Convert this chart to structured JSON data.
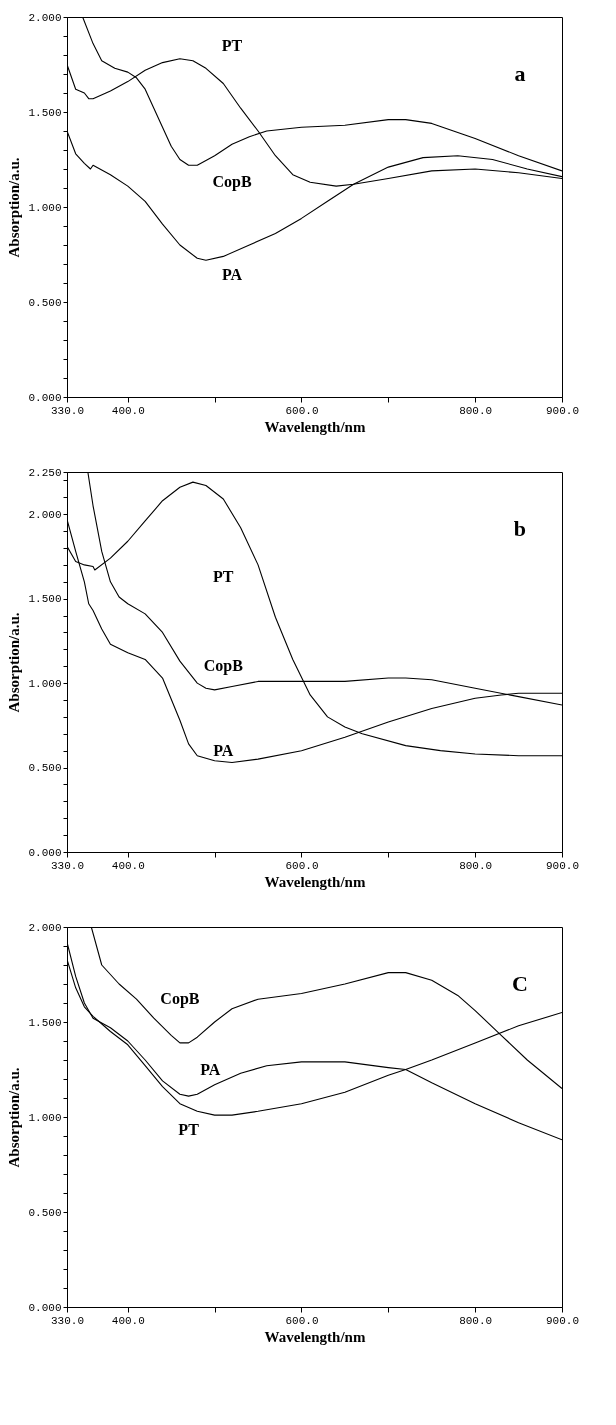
{
  "chart_data": [
    {
      "type": "line",
      "xlabel": "Wavelength/nm",
      "ylabel": "Absorption/a.u.",
      "annotations": [
        "a"
      ],
      "grid": false,
      "legend": false,
      "marker": "none",
      "line_style": "solid",
      "xlim": [
        330,
        900
      ],
      "ylim": [
        0,
        2
      ],
      "xticks": [
        {
          "value": 330,
          "label": "330.0"
        },
        {
          "value": 400,
          "label": "400.0"
        },
        {
          "value": 500,
          "label": null
        },
        {
          "value": 600,
          "label": "600.0"
        },
        {
          "value": 700,
          "label": null
        },
        {
          "value": 800,
          "label": "800.0"
        },
        {
          "value": 900,
          "label": "900.0"
        }
      ],
      "yticks": [
        {
          "value": 0,
          "label": "0.000"
        },
        {
          "value": 0.1,
          "label": null
        },
        {
          "value": 0.2,
          "label": null
        },
        {
          "value": 0.3,
          "label": null
        },
        {
          "value": 0.4,
          "label": null
        },
        {
          "value": 0.5,
          "label": "0.500"
        },
        {
          "value": 0.6,
          "label": null
        },
        {
          "value": 0.7,
          "label": null
        },
        {
          "value": 0.8,
          "label": null
        },
        {
          "value": 0.9,
          "label": null
        },
        {
          "value": 1,
          "label": "1.000"
        },
        {
          "value": 1.1,
          "label": null
        },
        {
          "value": 1.2,
          "label": null
        },
        {
          "value": 1.3,
          "label": null
        },
        {
          "value": 1.4,
          "label": null
        },
        {
          "value": 1.5,
          "label": "1.500"
        },
        {
          "value": 1.6,
          "label": null
        },
        {
          "value": 1.7,
          "label": null
        },
        {
          "value": 1.8,
          "label": null
        },
        {
          "value": 1.9,
          "label": null
        },
        {
          "value": 2,
          "label": "2.000"
        }
      ],
      "series": [
        {
          "name": "PT",
          "color": "#000000",
          "x": [
            330,
            340,
            350,
            355,
            360,
            380,
            400,
            420,
            440,
            460,
            475,
            490,
            510,
            530,
            550,
            570,
            590,
            610,
            640,
            660,
            700,
            750,
            800,
            850,
            900
          ],
          "values": [
            1.75,
            1.62,
            1.6,
            1.57,
            1.57,
            1.61,
            1.66,
            1.72,
            1.76,
            1.78,
            1.77,
            1.73,
            1.65,
            1.52,
            1.4,
            1.27,
            1.17,
            1.13,
            1.11,
            1.12,
            1.15,
            1.19,
            1.2,
            1.18,
            1.15
          ]
        },
        {
          "name": "CopB",
          "color": "#000000",
          "x": [
            348,
            360,
            370,
            385,
            400,
            410,
            420,
            430,
            440,
            450,
            460,
            470,
            480,
            500,
            520,
            540,
            560,
            600,
            650,
            700,
            720,
            750,
            800,
            850,
            900
          ],
          "values": [
            2.0,
            1.86,
            1.77,
            1.73,
            1.71,
            1.68,
            1.62,
            1.52,
            1.42,
            1.32,
            1.25,
            1.22,
            1.22,
            1.27,
            1.33,
            1.37,
            1.4,
            1.42,
            1.43,
            1.46,
            1.46,
            1.44,
            1.36,
            1.27,
            1.19
          ]
        },
        {
          "name": "PA",
          "color": "#000000",
          "x": [
            330,
            340,
            350,
            357,
            360,
            380,
            400,
            420,
            440,
            460,
            480,
            490,
            510,
            540,
            570,
            600,
            630,
            660,
            700,
            740,
            780,
            820,
            860,
            900
          ],
          "values": [
            1.4,
            1.28,
            1.23,
            1.2,
            1.22,
            1.17,
            1.11,
            1.03,
            0.91,
            0.8,
            0.73,
            0.72,
            0.74,
            0.8,
            0.86,
            0.94,
            1.03,
            1.12,
            1.21,
            1.26,
            1.27,
            1.25,
            1.2,
            1.16
          ]
        }
      ]
    },
    {
      "type": "line",
      "xlabel": "Wavelength/nm",
      "ylabel": "Absorption/a.u.",
      "annotations": [
        "b"
      ],
      "grid": false,
      "legend": false,
      "marker": "none",
      "line_style": "solid",
      "xlim": [
        330,
        900
      ],
      "ylim": [
        0,
        2.25
      ],
      "xticks": [
        {
          "value": 330,
          "label": "330.0"
        },
        {
          "value": 400,
          "label": "400.0"
        },
        {
          "value": 500,
          "label": null
        },
        {
          "value": 600,
          "label": "600.0"
        },
        {
          "value": 700,
          "label": null
        },
        {
          "value": 800,
          "label": "800.0"
        },
        {
          "value": 900,
          "label": "900.0"
        }
      ],
      "yticks": [
        {
          "value": 0,
          "label": "0.000"
        },
        {
          "value": 0.1,
          "label": null
        },
        {
          "value": 0.2,
          "label": null
        },
        {
          "value": 0.3,
          "label": null
        },
        {
          "value": 0.4,
          "label": null
        },
        {
          "value": 0.5,
          "label": "0.500"
        },
        {
          "value": 0.6,
          "label": null
        },
        {
          "value": 0.7,
          "label": null
        },
        {
          "value": 0.8,
          "label": null
        },
        {
          "value": 0.9,
          "label": null
        },
        {
          "value": 1,
          "label": "1.000"
        },
        {
          "value": 1.1,
          "label": null
        },
        {
          "value": 1.2,
          "label": null
        },
        {
          "value": 1.3,
          "label": null
        },
        {
          "value": 1.4,
          "label": null
        },
        {
          "value": 1.5,
          "label": "1.500"
        },
        {
          "value": 1.6,
          "label": null
        },
        {
          "value": 1.7,
          "label": null
        },
        {
          "value": 1.8,
          "label": null
        },
        {
          "value": 1.9,
          "label": null
        },
        {
          "value": 2,
          "label": "2.000"
        },
        {
          "value": 2.1,
          "label": null
        },
        {
          "value": 2.2,
          "label": null
        },
        {
          "value": 2.25,
          "label": "2.250"
        }
      ],
      "series": [
        {
          "name": "PT",
          "color": "#000000",
          "x": [
            330,
            340,
            350,
            360,
            362,
            380,
            400,
            420,
            440,
            460,
            475,
            490,
            510,
            530,
            550,
            570,
            590,
            610,
            630,
            650,
            670,
            720,
            760,
            800,
            850,
            900
          ],
          "values": [
            1.81,
            1.72,
            1.7,
            1.69,
            1.67,
            1.74,
            1.84,
            1.96,
            2.08,
            2.16,
            2.19,
            2.17,
            2.09,
            1.92,
            1.7,
            1.39,
            1.14,
            0.93,
            0.8,
            0.74,
            0.7,
            0.63,
            0.6,
            0.58,
            0.57,
            0.57
          ]
        },
        {
          "name": "CopB",
          "color": "#000000",
          "x": [
            354,
            360,
            370,
            380,
            390,
            400,
            420,
            440,
            460,
            480,
            490,
            500,
            520,
            550,
            600,
            650,
            700,
            720,
            750,
            800,
            850,
            900
          ],
          "values": [
            2.25,
            2.05,
            1.78,
            1.6,
            1.51,
            1.47,
            1.41,
            1.3,
            1.13,
            1.0,
            0.97,
            0.96,
            0.98,
            1.01,
            1.01,
            1.01,
            1.03,
            1.03,
            1.02,
            0.97,
            0.92,
            0.87
          ]
        },
        {
          "name": "PA",
          "color": "#000000",
          "x": [
            330,
            340,
            350,
            355,
            360,
            370,
            380,
            400,
            420,
            440,
            460,
            470,
            480,
            500,
            520,
            550,
            600,
            650,
            700,
            750,
            800,
            830,
            850,
            900
          ],
          "values": [
            1.97,
            1.78,
            1.6,
            1.47,
            1.43,
            1.32,
            1.23,
            1.18,
            1.14,
            1.03,
            0.78,
            0.64,
            0.57,
            0.54,
            0.53,
            0.55,
            0.6,
            0.68,
            0.77,
            0.85,
            0.91,
            0.93,
            0.94,
            0.94
          ]
        }
      ]
    },
    {
      "type": "line",
      "xlabel": "Wavelength/nm",
      "ylabel": "Absorption/a.u.",
      "annotations": [
        "C"
      ],
      "grid": false,
      "legend": false,
      "marker": "none",
      "line_style": "solid",
      "xlim": [
        330,
        900
      ],
      "ylim": [
        0,
        2
      ],
      "xticks": [
        {
          "value": 330,
          "label": "330.0"
        },
        {
          "value": 400,
          "label": "400.0"
        },
        {
          "value": 500,
          "label": null
        },
        {
          "value": 600,
          "label": "600.0"
        },
        {
          "value": 700,
          "label": null
        },
        {
          "value": 800,
          "label": "800.0"
        },
        {
          "value": 900,
          "label": "900.0"
        }
      ],
      "yticks": [
        {
          "value": 0,
          "label": "0.000"
        },
        {
          "value": 0.1,
          "label": null
        },
        {
          "value": 0.2,
          "label": null
        },
        {
          "value": 0.3,
          "label": null
        },
        {
          "value": 0.4,
          "label": null
        },
        {
          "value": 0.5,
          "label": "0.500"
        },
        {
          "value": 0.6,
          "label": null
        },
        {
          "value": 0.7,
          "label": null
        },
        {
          "value": 0.8,
          "label": null
        },
        {
          "value": 0.9,
          "label": null
        },
        {
          "value": 1,
          "label": "1.000"
        },
        {
          "value": 1.1,
          "label": null
        },
        {
          "value": 1.2,
          "label": null
        },
        {
          "value": 1.3,
          "label": null
        },
        {
          "value": 1.4,
          "label": null
        },
        {
          "value": 1.5,
          "label": "1.500"
        },
        {
          "value": 1.6,
          "label": null
        },
        {
          "value": 1.7,
          "label": null
        },
        {
          "value": 1.8,
          "label": null
        },
        {
          "value": 1.9,
          "label": null
        },
        {
          "value": 2,
          "label": "2.000"
        }
      ],
      "series": [
        {
          "name": "CopB",
          "color": "#000000",
          "x": [
            358,
            370,
            390,
            410,
            430,
            450,
            460,
            470,
            480,
            500,
            520,
            550,
            600,
            650,
            700,
            720,
            750,
            780,
            800,
            830,
            860,
            900
          ],
          "values": [
            2.0,
            1.8,
            1.7,
            1.62,
            1.52,
            1.43,
            1.39,
            1.39,
            1.42,
            1.5,
            1.57,
            1.62,
            1.65,
            1.7,
            1.76,
            1.76,
            1.72,
            1.64,
            1.56,
            1.43,
            1.3,
            1.15
          ]
        },
        {
          "name": "PA",
          "color": "#000000",
          "x": [
            330,
            340,
            350,
            360,
            380,
            400,
            420,
            440,
            460,
            470,
            480,
            500,
            530,
            560,
            600,
            650,
            700,
            720,
            750,
            800,
            850,
            900
          ],
          "values": [
            1.92,
            1.74,
            1.6,
            1.52,
            1.47,
            1.4,
            1.3,
            1.19,
            1.12,
            1.11,
            1.12,
            1.17,
            1.23,
            1.27,
            1.29,
            1.29,
            1.26,
            1.25,
            1.18,
            1.07,
            0.97,
            0.88
          ]
        },
        {
          "name": "PT",
          "color": "#000000",
          "x": [
            330,
            340,
            350,
            360,
            380,
            400,
            420,
            440,
            460,
            480,
            500,
            520,
            550,
            600,
            650,
            700,
            720,
            750,
            800,
            850,
            900
          ],
          "values": [
            1.83,
            1.68,
            1.58,
            1.53,
            1.45,
            1.38,
            1.27,
            1.16,
            1.07,
            1.03,
            1.01,
            1.01,
            1.03,
            1.07,
            1.13,
            1.22,
            1.25,
            1.3,
            1.39,
            1.48,
            1.55
          ]
        }
      ]
    }
  ]
}
